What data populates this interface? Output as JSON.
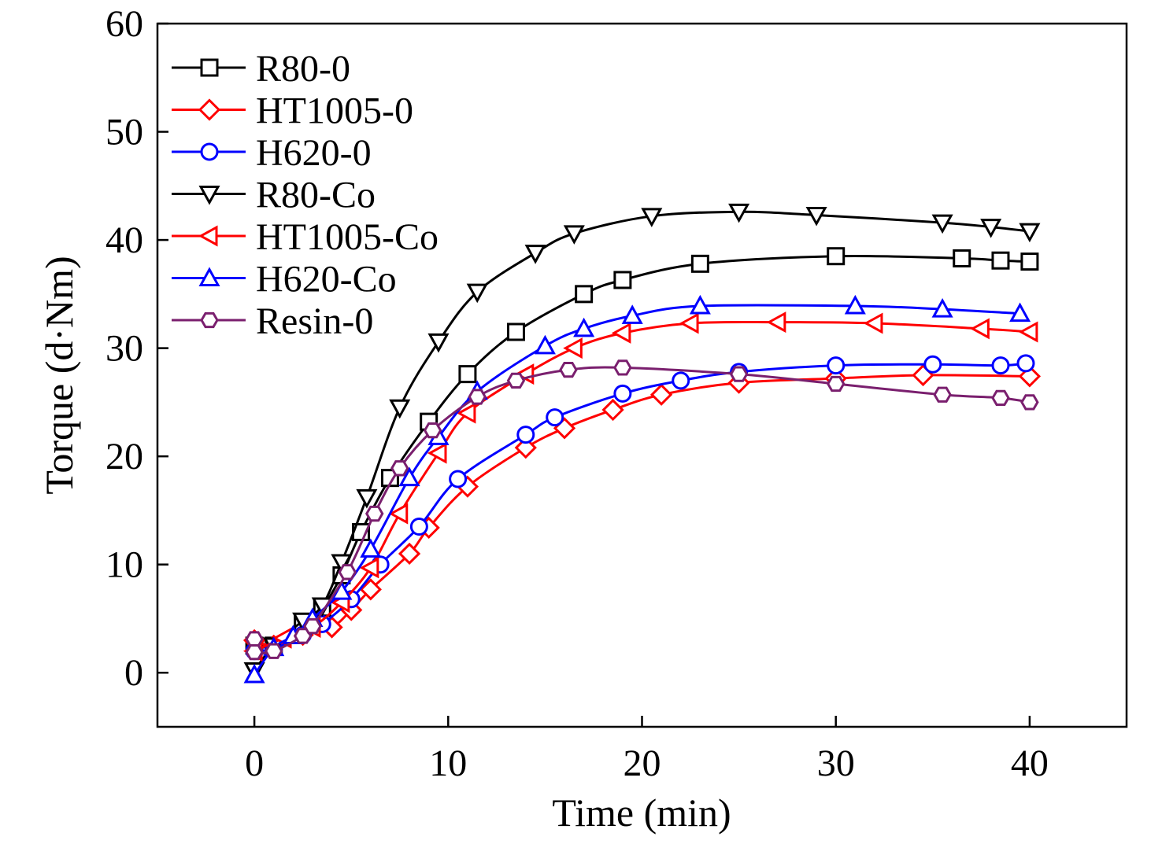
{
  "chart_data": {
    "type": "line",
    "xlabel": "Time (min)",
    "ylabel": "Torque (d·Nm)",
    "xlim": [
      -5,
      45
    ],
    "ylim": [
      -5,
      60
    ],
    "xticks": [
      0,
      10,
      20,
      30,
      40
    ],
    "yticks": [
      0,
      10,
      20,
      30,
      40,
      50,
      60
    ],
    "grid": false,
    "legend_position": "top-left",
    "series": [
      {
        "name": "R80-0",
        "color": "#000000",
        "marker": "square",
        "points": [
          [
            0,
            2.5
          ],
          [
            1,
            2.5
          ],
          [
            2.5,
            4.5
          ],
          [
            3.5,
            6
          ],
          [
            4.5,
            9
          ],
          [
            5.5,
            13
          ],
          [
            7,
            18
          ],
          [
            9,
            23.2
          ],
          [
            11,
            27.6
          ],
          [
            13.5,
            31.5
          ],
          [
            17,
            35
          ],
          [
            19,
            36.3
          ],
          [
            23,
            37.8
          ],
          [
            30,
            38.5
          ],
          [
            36.5,
            38.3
          ],
          [
            38.5,
            38.1
          ],
          [
            40,
            38.0
          ]
        ]
      },
      {
        "name": "HT1005-0",
        "color": "#ff0000",
        "marker": "diamond",
        "points": [
          [
            0,
            3
          ],
          [
            1,
            2.5
          ],
          [
            2.5,
            3.5
          ],
          [
            4,
            4.2
          ],
          [
            5,
            5.8
          ],
          [
            6,
            7.7
          ],
          [
            8,
            11
          ],
          [
            9,
            13.4
          ],
          [
            11,
            17.2
          ],
          [
            14,
            20.8
          ],
          [
            16,
            22.6
          ],
          [
            18.5,
            24.3
          ],
          [
            21,
            25.7
          ],
          [
            25,
            26.8
          ],
          [
            30,
            27.2
          ],
          [
            34.5,
            27.5
          ],
          [
            40,
            27.4
          ]
        ]
      },
      {
        "name": "H620-0",
        "color": "#0000ff",
        "marker": "circle",
        "points": [
          [
            0,
            2
          ],
          [
            1,
            2.2
          ],
          [
            2.5,
            3.5
          ],
          [
            3.5,
            4.5
          ],
          [
            5,
            6.8
          ],
          [
            6.5,
            10
          ],
          [
            8.5,
            13.5
          ],
          [
            10.5,
            17.9
          ],
          [
            14,
            22
          ],
          [
            15.5,
            23.6
          ],
          [
            19,
            25.8
          ],
          [
            22,
            27
          ],
          [
            25,
            27.8
          ],
          [
            30,
            28.4
          ],
          [
            35,
            28.5
          ],
          [
            38.5,
            28.4
          ],
          [
            39.8,
            28.6
          ]
        ]
      },
      {
        "name": "R80-Co",
        "color": "#000000",
        "marker": "triangle-down",
        "points": [
          [
            0,
            0.2
          ],
          [
            1,
            2.5
          ],
          [
            2.5,
            4.8
          ],
          [
            3.5,
            6.2
          ],
          [
            4.5,
            10.2
          ],
          [
            5.8,
            16.2
          ],
          [
            7.5,
            24.5
          ],
          [
            9.5,
            30.6
          ],
          [
            11.5,
            35.2
          ],
          [
            14.5,
            38.8
          ],
          [
            16.5,
            40.6
          ],
          [
            20.5,
            42.2
          ],
          [
            25,
            42.6
          ],
          [
            29,
            42.3
          ],
          [
            35.5,
            41.6
          ],
          [
            38,
            41.2
          ],
          [
            40,
            40.8
          ]
        ]
      },
      {
        "name": "HT1005-Co",
        "color": "#ff0000",
        "marker": "triangle-left",
        "points": [
          [
            0,
            2
          ],
          [
            1.5,
            3.2
          ],
          [
            3,
            4.2
          ],
          [
            4.5,
            6.5
          ],
          [
            6,
            9.7
          ],
          [
            7.5,
            14.7
          ],
          [
            9.5,
            20.3
          ],
          [
            11,
            24
          ],
          [
            14,
            27.6
          ],
          [
            16.5,
            30
          ],
          [
            19,
            31.4
          ],
          [
            22.5,
            32.3
          ],
          [
            27,
            32.4
          ],
          [
            32,
            32.3
          ],
          [
            37.5,
            31.8
          ],
          [
            40,
            31.5
          ]
        ]
      },
      {
        "name": "H620-Co",
        "color": "#0000ff",
        "marker": "triangle-up",
        "points": [
          [
            0,
            -0.2
          ],
          [
            1,
            2.3
          ],
          [
            2,
            3.4
          ],
          [
            3,
            5
          ],
          [
            4.5,
            7.5
          ],
          [
            6,
            11.4
          ],
          [
            8,
            18
          ],
          [
            9.5,
            21.8
          ],
          [
            11.5,
            26
          ],
          [
            15,
            30.2
          ],
          [
            17,
            31.8
          ],
          [
            19.5,
            33
          ],
          [
            23,
            33.9
          ],
          [
            31,
            33.9
          ],
          [
            35.5,
            33.6
          ],
          [
            39.5,
            33.2
          ]
        ]
      },
      {
        "name": "Resin-0",
        "color": "#7a1f6e",
        "marker": "hexagon",
        "points": [
          [
            0,
            3.1
          ],
          [
            0,
            1.9
          ],
          [
            1,
            2
          ],
          [
            2.5,
            3.4
          ],
          [
            3,
            4.3
          ],
          [
            4.8,
            9.3
          ],
          [
            6.2,
            14.7
          ],
          [
            7.5,
            18.9
          ],
          [
            9.2,
            22.4
          ],
          [
            11.5,
            25.5
          ],
          [
            13.5,
            27
          ],
          [
            16.2,
            28
          ],
          [
            19,
            28.2
          ],
          [
            25,
            27.6
          ],
          [
            30,
            26.7
          ],
          [
            35.5,
            25.7
          ],
          [
            38.5,
            25.4
          ],
          [
            40,
            25
          ]
        ]
      }
    ]
  }
}
